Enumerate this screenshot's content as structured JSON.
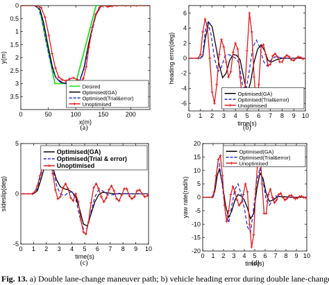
{
  "caption": {
    "label": "Fig. 13.",
    "text": "a) Double lane-change maneuver path; b) vehicle heading error during double lane-change,"
  },
  "colors": {
    "desired": "#22dd22",
    "ga": "#000000",
    "trial": "#1f2fe0",
    "unopt": "#e01818"
  },
  "chart_data": [
    {
      "id": "a",
      "type": "line",
      "panel_label": "(a)",
      "xlabel": "x(m)",
      "ylabel": "y(m)",
      "xlim": [
        0,
        235
      ],
      "ylim": [
        0,
        4
      ],
      "y_inverted": true,
      "xticks": [
        0,
        50,
        100,
        150,
        200
      ],
      "yticks": [
        0,
        0.5,
        1,
        1.5,
        2,
        2.5,
        3,
        3.5
      ],
      "legend_position": "bottom-right",
      "series": [
        {
          "name": "Desired",
          "color_key": "desired",
          "marker": "none",
          "dash": "solid",
          "x": [
            0,
            33,
            62,
            100,
            137,
            235
          ],
          "y": [
            0,
            0,
            3,
            3,
            0,
            0
          ]
        },
        {
          "name": "Optimised(GA)",
          "color_key": "ga",
          "marker": "none",
          "dash": "solid",
          "x": [
            0,
            25,
            35,
            42,
            50,
            57,
            63,
            72,
            82,
            92,
            100,
            107,
            115,
            122,
            130,
            137,
            145,
            152,
            165,
            180,
            200,
            235
          ],
          "y": [
            0,
            0,
            0.15,
            0.7,
            1.6,
            2.3,
            2.75,
            2.95,
            3.0,
            3.02,
            3.0,
            2.9,
            2.4,
            1.6,
            0.85,
            0.35,
            0.05,
            -0.02,
            0.0,
            0.0,
            0.0,
            0.0
          ]
        },
        {
          "name": "Optimised(Trial&error)",
          "color_key": "trial",
          "marker": "none",
          "dash": "dashed",
          "x": [
            0,
            25,
            32,
            38,
            45,
            52,
            58,
            65,
            75,
            85,
            95,
            102,
            108,
            115,
            122,
            130,
            137,
            145,
            152,
            160,
            170,
            185,
            205,
            235
          ],
          "y": [
            0,
            0,
            0.1,
            0.5,
            1.3,
            2.0,
            2.5,
            2.8,
            2.95,
            3.0,
            3.02,
            3.0,
            2.85,
            2.45,
            1.75,
            0.95,
            0.35,
            -0.02,
            -0.1,
            -0.05,
            0.0,
            0.0,
            0.0,
            0.0
          ]
        },
        {
          "name": "Unoptimised",
          "color_key": "unopt",
          "marker": "plus",
          "dash": "solid",
          "x": [
            0,
            30,
            37,
            44,
            51,
            57,
            63,
            69,
            75,
            82,
            89,
            96,
            103,
            109,
            114,
            119,
            124,
            130,
            136,
            143,
            150,
            158,
            166,
            175,
            190,
            210,
            235
          ],
          "y": [
            0,
            0,
            0.08,
            0.45,
            1.15,
            1.85,
            2.4,
            2.75,
            2.85,
            2.9,
            2.82,
            2.78,
            2.85,
            2.95,
            2.8,
            2.35,
            1.6,
            0.85,
            0.35,
            0.08,
            -0.02,
            0.05,
            0.02,
            0.0,
            0.0,
            0.0,
            0.0
          ]
        }
      ]
    },
    {
      "id": "b",
      "type": "line",
      "panel_label": "(b)",
      "xlabel": "time(s)",
      "ylabel": "heading error(deg)",
      "xlim": [
        0,
        10
      ],
      "ylim": [
        -7,
        7
      ],
      "xticks": [
        0,
        1,
        2,
        3,
        4,
        5,
        6,
        7,
        8,
        9,
        10
      ],
      "yticks": [
        -6,
        -4,
        -2,
        0,
        2,
        4,
        6
      ],
      "legend_position": "bottom-right",
      "series": [
        {
          "name": "Optimised(GA)",
          "color_key": "ga",
          "marker": "none",
          "dash": "solid",
          "x": [
            0,
            1.0,
            1.2,
            1.4,
            1.7,
            2.0,
            2.3,
            2.6,
            2.9,
            3.2,
            3.5,
            3.8,
            4.1,
            4.4,
            4.7,
            5.0,
            5.3,
            5.6,
            5.9,
            6.2,
            6.5,
            6.8,
            7.1,
            7.5,
            8.0,
            8.5,
            10
          ],
          "y": [
            0,
            0,
            0.3,
            2.5,
            4.8,
            4.2,
            1.8,
            -0.8,
            -2.6,
            -2.0,
            -0.3,
            0.5,
            0.4,
            -0.2,
            -2.5,
            -4.8,
            -3.2,
            -0.5,
            1.2,
            1.8,
            1.0,
            -0.3,
            -0.5,
            -0.2,
            0.0,
            0.0,
            0.0
          ]
        },
        {
          "name": "Optimised(Trial&error)",
          "color_key": "trial",
          "marker": "none",
          "dash": "dashed",
          "x": [
            0,
            1.0,
            1.2,
            1.4,
            1.6,
            1.9,
            2.2,
            2.5,
            2.8,
            3.1,
            3.4,
            3.7,
            4.0,
            4.3,
            4.6,
            4.9,
            5.2,
            5.5,
            5.8,
            6.1,
            6.4,
            6.7,
            7.0,
            7.4,
            7.8,
            8.5,
            10
          ],
          "y": [
            0,
            0,
            0.5,
            3.5,
            4.9,
            3.2,
            0.0,
            -1.8,
            -1.2,
            0.3,
            0.5,
            0.3,
            0.0,
            -0.6,
            -3.5,
            -4.3,
            -1.5,
            1.5,
            2.4,
            1.4,
            -0.4,
            -1.0,
            -0.3,
            0.2,
            0.1,
            0.0,
            0.0
          ]
        },
        {
          "name": "Unoptimised",
          "color_key": "unopt",
          "marker": "plus",
          "dash": "solid",
          "x": [
            0,
            0.8,
            1.0,
            1.2,
            1.4,
            1.6,
            1.8,
            2.0,
            2.2,
            2.4,
            2.6,
            2.8,
            3.0,
            3.2,
            3.4,
            3.6,
            3.8,
            4.0,
            4.2,
            4.4,
            4.6,
            4.8,
            5.0,
            5.2,
            5.4,
            5.6,
            5.8,
            6.0,
            6.2,
            6.4,
            6.6,
            6.8,
            7.0,
            7.2,
            7.4,
            7.6,
            7.8,
            8.0,
            8.2,
            8.4,
            8.6,
            8.8,
            9.0,
            9.2,
            9.4,
            9.6,
            9.8,
            10
          ],
          "y": [
            0,
            0,
            0.5,
            3.5,
            5.2,
            4.0,
            0.0,
            -4.5,
            -6.0,
            -3.5,
            0.5,
            2.5,
            1.5,
            -0.5,
            -2.5,
            -1.8,
            0.8,
            2.0,
            1.2,
            -2.5,
            -5.5,
            -4.5,
            1.0,
            6.0,
            3.5,
            -2.5,
            -6.2,
            -3.5,
            1.5,
            1.8,
            0.5,
            -1.0,
            -0.8,
            0.3,
            0.6,
            0.2,
            -0.5,
            -0.5,
            0.1,
            0.4,
            0.2,
            -0.2,
            -0.3,
            0.0,
            0.2,
            0.1,
            -0.1,
            0.0
          ]
        }
      ]
    },
    {
      "id": "c",
      "type": "line",
      "panel_label": "(c)",
      "xlabel": "time(s)",
      "ylabel": "sideslip(deg)",
      "xlim": [
        0,
        10
      ],
      "ylim": [
        -5,
        5
      ],
      "xticks": [
        0,
        1,
        2,
        3,
        4,
        5,
        6,
        7,
        8,
        9,
        10
      ],
      "yticks": [
        -5,
        0,
        5
      ],
      "legend_position": "top-right",
      "series": [
        {
          "name": "Optimised(GA)",
          "color_key": "ga",
          "marker": "none",
          "dash": "solid",
          "x": [
            0,
            1.0,
            1.3,
            1.6,
            1.9,
            2.2,
            2.5,
            2.8,
            3.1,
            3.4,
            3.7,
            4.0,
            4.3,
            4.6,
            4.9,
            5.2,
            5.5,
            5.8,
            6.1,
            6.4,
            6.8,
            7.3,
            8.0,
            10
          ],
          "y": [
            0,
            0,
            0.3,
            1.5,
            2.9,
            3.4,
            2.6,
            1.4,
            0.7,
            0.5,
            0.4,
            0.2,
            -0.3,
            -1.5,
            -3.0,
            -3.2,
            -2.0,
            -0.8,
            -0.1,
            0.15,
            0.1,
            0.0,
            0.0,
            0.0
          ]
        },
        {
          "name": "Optimised(Trial & error)",
          "color_key": "trial",
          "marker": "none",
          "dash": "dashed",
          "x": [
            0,
            1.0,
            1.3,
            1.6,
            1.9,
            2.2,
            2.5,
            2.8,
            3.1,
            3.4,
            3.7,
            4.0,
            4.3,
            4.6,
            4.9,
            5.2,
            5.5,
            5.8,
            6.1,
            6.4,
            6.8,
            7.2,
            7.7,
            8.3,
            10
          ],
          "y": [
            0,
            0,
            0.5,
            2.0,
            3.4,
            3.8,
            2.5,
            0.8,
            0.0,
            -0.2,
            0.1,
            0.2,
            -0.5,
            -2.2,
            -3.5,
            -3.4,
            -1.8,
            -0.3,
            0.4,
            0.3,
            -0.1,
            -0.1,
            0.05,
            0.0,
            0.0
          ]
        },
        {
          "name": "Unoptimised",
          "color_key": "unopt",
          "marker": "plus",
          "dash": "solid",
          "x": [
            0,
            0.9,
            1.1,
            1.3,
            1.5,
            1.7,
            1.9,
            2.1,
            2.3,
            2.5,
            2.7,
            2.9,
            3.1,
            3.3,
            3.5,
            3.7,
            3.9,
            4.1,
            4.3,
            4.5,
            4.7,
            4.9,
            5.1,
            5.3,
            5.5,
            5.7,
            5.9,
            6.1,
            6.3,
            6.5,
            6.7,
            6.9,
            7.1,
            7.3,
            7.5,
            7.7,
            7.9,
            8.1,
            8.3,
            8.5,
            8.7,
            8.9,
            9.1,
            9.3,
            9.5,
            9.7,
            9.9,
            10
          ],
          "y": [
            0,
            0,
            0.2,
            0.8,
            1.8,
            2.8,
            3.6,
            4.1,
            3.6,
            2.0,
            0.4,
            -0.5,
            -0.3,
            0.6,
            1.0,
            0.5,
            -0.4,
            -0.7,
            0.0,
            -0.8,
            -2.6,
            -3.8,
            -4.0,
            -2.8,
            -0.9,
            0.6,
            1.0,
            0.5,
            -0.3,
            -0.8,
            -0.4,
            0.4,
            0.8,
            0.3,
            -0.5,
            -0.7,
            -0.1,
            0.5,
            0.5,
            -0.2,
            -0.5,
            -0.3,
            0.3,
            0.4,
            0.0,
            -0.3,
            -0.2,
            0.0
          ]
        }
      ]
    },
    {
      "id": "d",
      "type": "line",
      "panel_label": "(d)",
      "xlabel": "time(s)",
      "ylabel": "yaw rate(rad/s)",
      "xlim": [
        0,
        10
      ],
      "ylim": [
        -20,
        20
      ],
      "xticks": [
        0,
        1,
        2,
        3,
        4,
        5,
        6,
        7,
        8,
        9,
        10
      ],
      "yticks": [
        -20,
        -15,
        -10,
        -5,
        0,
        5,
        10,
        15,
        20
      ],
      "legend_position": "top-right",
      "series": [
        {
          "name": "Optimised(GA)",
          "color_key": "ga",
          "marker": "none",
          "dash": "solid",
          "x": [
            0,
            1.0,
            1.2,
            1.4,
            1.6,
            1.9,
            2.2,
            2.5,
            2.8,
            3.1,
            3.4,
            3.7,
            4.0,
            4.3,
            4.6,
            4.9,
            5.2,
            5.5,
            5.8,
            6.1,
            6.4,
            6.8,
            7.2,
            7.8,
            8.5,
            10
          ],
          "y": [
            0,
            0,
            3.0,
            8.0,
            10.5,
            5.0,
            -3.0,
            -7.5,
            -5.0,
            -1.0,
            1.0,
            0.5,
            -1.0,
            -4.0,
            -8.0,
            -6.0,
            3.0,
            9.0,
            7.0,
            1.5,
            -1.5,
            -1.0,
            0.3,
            0.2,
            0.0,
            0.0
          ]
        },
        {
          "name": "Optimised(Trial&error)",
          "color_key": "trial",
          "marker": "none",
          "dash": "dashed",
          "x": [
            0,
            1.0,
            1.2,
            1.4,
            1.6,
            1.9,
            2.2,
            2.5,
            2.8,
            3.1,
            3.4,
            3.7,
            4.0,
            4.3,
            4.6,
            4.9,
            5.2,
            5.5,
            5.8,
            6.1,
            6.4,
            6.7,
            7.0,
            7.4,
            7.8,
            8.5,
            10
          ],
          "y": [
            0,
            0,
            4.0,
            11.0,
            12.5,
            4.0,
            -6.0,
            -9.5,
            -3.0,
            3.0,
            5.0,
            1.0,
            -4.0,
            -11.0,
            -13.0,
            -4.0,
            6.0,
            11.0,
            6.0,
            -1.0,
            -3.0,
            -1.0,
            0.5,
            0.3,
            0.0,
            0.0,
            0.0
          ]
        },
        {
          "name": "Unoptimised",
          "color_key": "unopt",
          "marker": "plus",
          "dash": "solid",
          "x": [
            0,
            0.9,
            1.1,
            1.3,
            1.5,
            1.7,
            1.9,
            2.1,
            2.3,
            2.5,
            2.7,
            2.9,
            3.1,
            3.3,
            3.5,
            3.7,
            3.9,
            4.1,
            4.3,
            4.5,
            4.7,
            4.9,
            5.1,
            5.3,
            5.5,
            5.7,
            5.9,
            6.1,
            6.3,
            6.5,
            6.7,
            6.9,
            7.1,
            7.3,
            7.5,
            7.7,
            7.9,
            8.1,
            8.3,
            8.5,
            8.7,
            8.9,
            9.1,
            9.3,
            9.5,
            9.7,
            9.9,
            10
          ],
          "y": [
            0,
            0,
            2.0,
            8.0,
            14.0,
            15.5,
            8.0,
            -3.0,
            -9.0,
            -5.0,
            1.0,
            4.0,
            2.0,
            -1.0,
            -3.0,
            -2.0,
            1.0,
            5.0,
            2.0,
            -10.0,
            -18.5,
            -14.0,
            3.0,
            14.5,
            17.5,
            5.0,
            -6.0,
            -6.0,
            1.0,
            3.0,
            0.0,
            -2.0,
            -1.0,
            1.0,
            1.5,
            0.0,
            -1.0,
            -0.5,
            0.5,
            0.8,
            0.0,
            -0.6,
            -0.3,
            0.3,
            0.4,
            0.0,
            -0.2,
            0.0
          ]
        }
      ]
    }
  ]
}
